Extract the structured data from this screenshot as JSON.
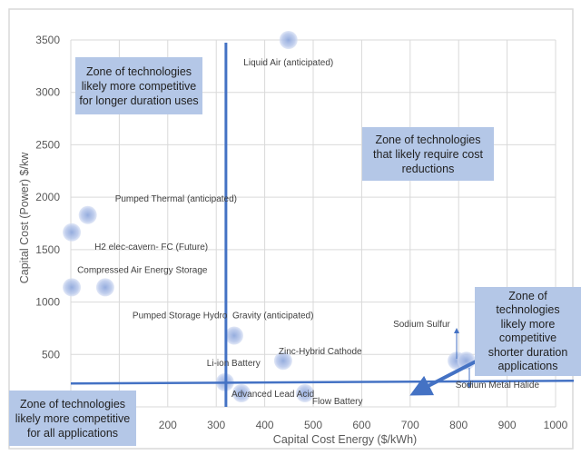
{
  "chart_data": {
    "type": "scatter",
    "xlabel": "Capital Cost Energy ($/kWh)",
    "ylabel": "Capital Cost (Power) $/kw",
    "xlim": [
      0,
      1000
    ],
    "ylim": [
      0,
      3500
    ],
    "x_ticks": [
      "200",
      "300",
      "400",
      "500",
      "600",
      "700",
      "800",
      "900",
      "1000"
    ],
    "y_ticks": [
      "500",
      "1000",
      "1500",
      "2000",
      "2500",
      "3000",
      "3500"
    ],
    "grid": true,
    "points": [
      {
        "label": "Liquid Air (anticipated)",
        "x": 449,
        "y": 3500
      },
      {
        "label": "Pumped Thermal  (anticipated)",
        "x": 35,
        "y": 1830
      },
      {
        "label": "H2 elec-cavern- FC (Future)",
        "x": 2,
        "y": 1665
      },
      {
        "label": "Compressed Air Energy Storage",
        "x": 2,
        "y": 1140
      },
      {
        "label": "Pumped Storage Hydro",
        "x": 71,
        "y": 1140
      },
      {
        "label": "Gravity (anticipated)",
        "x": 337,
        "y": 680
      },
      {
        "label": "Zinc-Hybrid Cathode",
        "x": 438,
        "y": 440
      },
      {
        "label": "Li-ion Battery",
        "x": 318,
        "y": 235
      },
      {
        "label": "Advanced Lead Acid",
        "x": 352,
        "y": 130
      },
      {
        "label": "Flow Battery",
        "x": 483,
        "y": 130
      },
      {
        "label": "Sodium Sulfur",
        "x": 796,
        "y": 440
      },
      {
        "label": "Sodium Metal Halide",
        "x": 816,
        "y": 440
      }
    ],
    "reference_lines": {
      "vertical_x": 320,
      "horizontal_y": 240
    },
    "annotations": [
      "Zone of technologies likely more competitive for longer duration uses",
      "Zone of technologies that likely require cost reductions",
      "Zone of technologies likely more competitive shorter duration applications",
      "Zone of technologies likely more competitive for all applications"
    ]
  },
  "zones": {
    "longer": [
      "Zone of technologies",
      "likely more competitive",
      "for longer duration uses"
    ],
    "cost": [
      "Zone of technologies",
      "that likely require cost",
      "reductions"
    ],
    "shorter": [
      "Zone of",
      "technologies",
      "likely more",
      "competitive",
      "shorter duration",
      "applications"
    ],
    "all": [
      "Zone of technologies",
      "likely more competitive",
      "for all applications"
    ]
  },
  "colors": {
    "bubble": "#8fa8dc",
    "line": "#4472c4",
    "zone": "#b4c7e7"
  }
}
